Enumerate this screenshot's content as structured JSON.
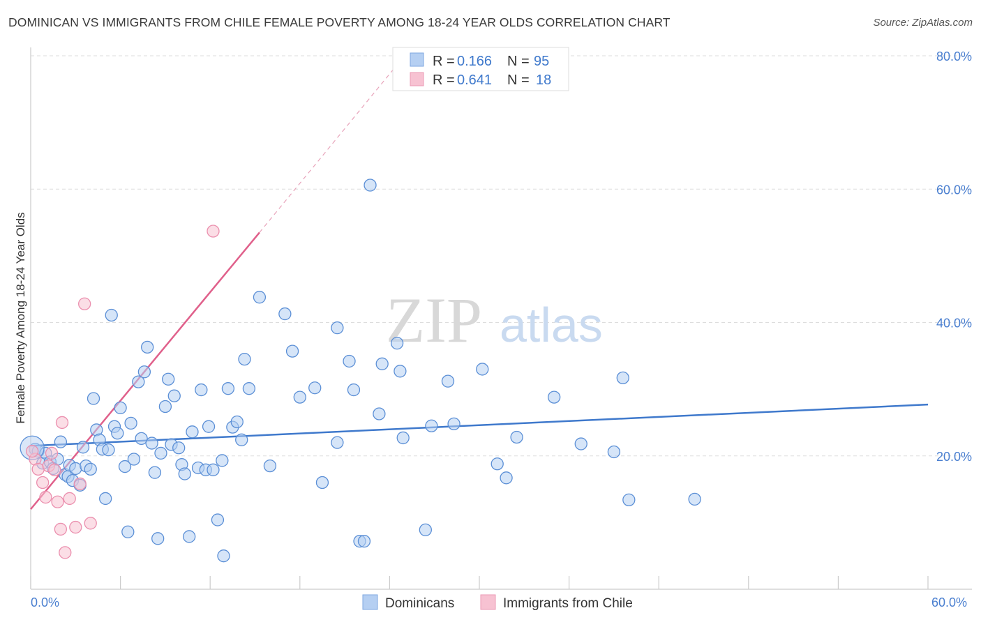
{
  "title": "DOMINICAN VS IMMIGRANTS FROM CHILE FEMALE POVERTY AMONG 18-24 YEAR OLDS CORRELATION CHART",
  "source": "Source: ZipAtlas.com",
  "watermark": {
    "zip": "ZIP",
    "atlas": "atlas"
  },
  "colors": {
    "blue": "#3f79cc",
    "blue_fill": "#b5cff2",
    "pink": "#e0608b",
    "pink_fill": "#f7c2d2",
    "grid": "#dddddd"
  },
  "legend": {
    "rows": [
      {
        "r_label": "R =",
        "r_value": "0.166",
        "n_label": "N =",
        "n_value": "95"
      },
      {
        "r_label": "R =",
        "r_value": "0.641",
        "n_label": "N =",
        "n_value": "18"
      }
    ]
  },
  "chart_data": {
    "type": "scatter",
    "title": "DOMINICAN VS IMMIGRANTS FROM CHILE FEMALE POVERTY AMONG 18-24 YEAR OLDS CORRELATION CHART",
    "xlabel": "",
    "ylabel": "Female Poverty Among 18-24 Year Olds",
    "xlim": [
      0,
      60
    ],
    "ylim": [
      0,
      82
    ],
    "x_tick_labels": [
      "0.0%",
      "60.0%"
    ],
    "y_ticks": [
      20,
      40,
      60,
      80
    ],
    "y_tick_labels": [
      "20.0%",
      "40.0%",
      "60.0%",
      "80.0%"
    ],
    "grid": "horizontal dashed",
    "legend_position": "top-center",
    "series": [
      {
        "name": "Dominicans",
        "color": "#3f79cc",
        "trend": {
          "x": [
            0,
            60
          ],
          "y": [
            21.5,
            27.7
          ]
        },
        "points": [
          [
            0.3,
            21.0
          ],
          [
            0.5,
            20.7
          ],
          [
            0.8,
            18.9
          ],
          [
            1.0,
            20.4
          ],
          [
            1.3,
            19.1
          ],
          [
            1.5,
            18.1
          ],
          [
            1.8,
            19.5
          ],
          [
            2.0,
            22.1
          ],
          [
            2.3,
            17.2
          ],
          [
            2.5,
            16.9
          ],
          [
            2.6,
            18.6
          ],
          [
            2.8,
            16.3
          ],
          [
            3.0,
            18.1
          ],
          [
            3.3,
            15.6
          ],
          [
            3.5,
            21.3
          ],
          [
            3.7,
            18.5
          ],
          [
            4.0,
            18.0
          ],
          [
            4.2,
            28.6
          ],
          [
            4.4,
            23.9
          ],
          [
            4.6,
            22.4
          ],
          [
            4.8,
            21.0
          ],
          [
            5.0,
            13.6
          ],
          [
            5.2,
            20.9
          ],
          [
            5.4,
            41.1
          ],
          [
            5.6,
            24.4
          ],
          [
            5.8,
            23.4
          ],
          [
            6.0,
            27.2
          ],
          [
            6.3,
            18.4
          ],
          [
            6.5,
            8.6
          ],
          [
            6.7,
            24.9
          ],
          [
            6.9,
            19.5
          ],
          [
            7.2,
            31.1
          ],
          [
            7.4,
            22.6
          ],
          [
            7.6,
            32.6
          ],
          [
            7.8,
            36.3
          ],
          [
            8.1,
            21.9
          ],
          [
            8.3,
            17.5
          ],
          [
            8.5,
            7.6
          ],
          [
            8.7,
            20.4
          ],
          [
            9.0,
            27.4
          ],
          [
            9.2,
            31.5
          ],
          [
            9.4,
            21.7
          ],
          [
            9.6,
            29.0
          ],
          [
            9.9,
            21.2
          ],
          [
            10.1,
            18.7
          ],
          [
            10.3,
            17.3
          ],
          [
            10.6,
            7.9
          ],
          [
            10.8,
            23.6
          ],
          [
            11.2,
            18.2
          ],
          [
            11.4,
            29.9
          ],
          [
            11.7,
            17.9
          ],
          [
            11.9,
            24.4
          ],
          [
            12.2,
            17.9
          ],
          [
            12.5,
            10.4
          ],
          [
            12.8,
            19.3
          ],
          [
            12.9,
            5.0
          ],
          [
            13.2,
            30.1
          ],
          [
            13.5,
            24.3
          ],
          [
            13.8,
            25.1
          ],
          [
            14.1,
            22.4
          ],
          [
            14.3,
            34.5
          ],
          [
            14.6,
            30.1
          ],
          [
            15.3,
            43.8
          ],
          [
            16.0,
            18.5
          ],
          [
            17.0,
            41.3
          ],
          [
            17.5,
            35.7
          ],
          [
            18.0,
            28.8
          ],
          [
            19.0,
            30.2
          ],
          [
            19.5,
            16.0
          ],
          [
            20.5,
            22.0
          ],
          [
            20.5,
            39.2
          ],
          [
            21.3,
            34.2
          ],
          [
            21.6,
            29.9
          ],
          [
            22.0,
            7.2
          ],
          [
            22.3,
            7.2
          ],
          [
            22.7,
            60.6
          ],
          [
            23.3,
            26.3
          ],
          [
            23.5,
            33.8
          ],
          [
            24.5,
            36.9
          ],
          [
            24.7,
            32.7
          ],
          [
            24.9,
            22.7
          ],
          [
            26.4,
            8.9
          ],
          [
            26.8,
            24.5
          ],
          [
            27.9,
            31.2
          ],
          [
            28.3,
            24.8
          ],
          [
            30.2,
            33.0
          ],
          [
            31.2,
            18.8
          ],
          [
            31.8,
            16.7
          ],
          [
            32.5,
            22.8
          ],
          [
            35.0,
            28.8
          ],
          [
            36.8,
            21.8
          ],
          [
            39.0,
            20.6
          ],
          [
            39.6,
            31.7
          ],
          [
            40.0,
            13.4
          ],
          [
            44.4,
            13.5
          ]
        ]
      },
      {
        "name": "Immigrants from Chile",
        "color": "#e0608b",
        "trend": {
          "x": [
            0,
            15.3
          ],
          "y": [
            12.0,
            53.5
          ]
        },
        "trend_extension": {
          "x": [
            15.3,
            25
          ],
          "y": [
            53.5,
            80
          ]
        },
        "points": [
          [
            0.3,
            19.5
          ],
          [
            0.5,
            18.0
          ],
          [
            0.8,
            16.0
          ],
          [
            1.0,
            13.8
          ],
          [
            1.2,
            18.5
          ],
          [
            1.4,
            20.4
          ],
          [
            1.6,
            17.9
          ],
          [
            1.8,
            13.1
          ],
          [
            2.0,
            9.0
          ],
          [
            2.1,
            25.0
          ],
          [
            2.3,
            5.5
          ],
          [
            2.6,
            13.6
          ],
          [
            3.0,
            9.3
          ],
          [
            3.3,
            15.8
          ],
          [
            3.6,
            42.8
          ],
          [
            4.0,
            9.9
          ],
          [
            12.2,
            53.7
          ],
          [
            0.1,
            20.7
          ]
        ]
      }
    ]
  },
  "bottom_legend": [
    {
      "label": "Dominicans"
    },
    {
      "label": "Immigrants from Chile"
    }
  ]
}
